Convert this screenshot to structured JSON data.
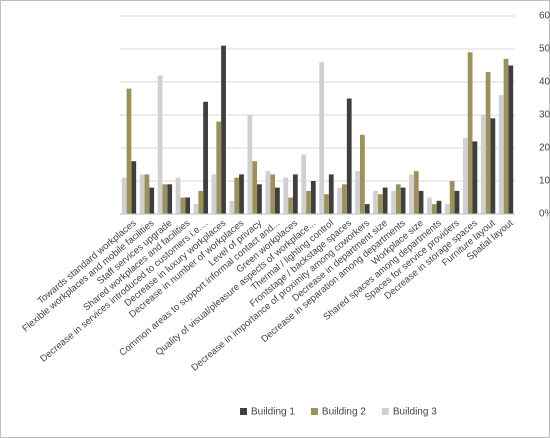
{
  "chart_data": {
    "type": "bar",
    "categories": [
      "Towards standard workplaces",
      "Flexible workplaces and mobile facilities",
      "Staff services upgrade",
      "Shared workplaces and facilities",
      "Decrease in services introduced to customers i.e....",
      "Decrease in luxury workplaces",
      "Decrease in number of workplaces",
      "Level of privacy",
      "Common areas to support informal contact and...",
      "Green workplaces",
      "Quality of visual/pleasure aspects of workplace...",
      "Thermal / lighting control",
      "Frontstage / backstage spaces",
      "Decrease in importance of proximity among coworkers",
      "Decrease in department size",
      "Decrease in separation among departments",
      "Workplace size",
      "Shared spaces among departments",
      "Spaces for service providers",
      "Decrease in storage spaces",
      "Furniture layout",
      "Spatial layout"
    ],
    "series": [
      {
        "name": "Building 1",
        "color": "#3f3f3f",
        "values": [
          16,
          8,
          9,
          5,
          34,
          51,
          12,
          9,
          8,
          12,
          10,
          12,
          35,
          3,
          8,
          8,
          7,
          4,
          7,
          22,
          29,
          45
        ]
      },
      {
        "name": "Building 2",
        "color": "#9c9158",
        "values": [
          38,
          12,
          9,
          5,
          7,
          28,
          11,
          16,
          12,
          5,
          7,
          6,
          9,
          24,
          6,
          9,
          13,
          3,
          10,
          49,
          43,
          47
        ]
      },
      {
        "name": "Building 3",
        "color": "#d0d0d0",
        "values": [
          11,
          12,
          42,
          11,
          3,
          12,
          4,
          30,
          13,
          11,
          18,
          46,
          8,
          13,
          7,
          7,
          12,
          5,
          3,
          23,
          30,
          36
        ]
      }
    ],
    "ylim": [
      0,
      60
    ],
    "yticks": [
      {
        "value": 0,
        "label": "0%"
      },
      {
        "value": 10,
        "label": "10%"
      },
      {
        "value": 20,
        "label": "20%"
      },
      {
        "value": 30,
        "label": "30%"
      },
      {
        "value": 40,
        "label": "40%"
      },
      {
        "value": 50,
        "label": "50%"
      },
      {
        "value": 60,
        "label": "60%"
      }
    ],
    "grid": true,
    "legend": "bottom"
  }
}
